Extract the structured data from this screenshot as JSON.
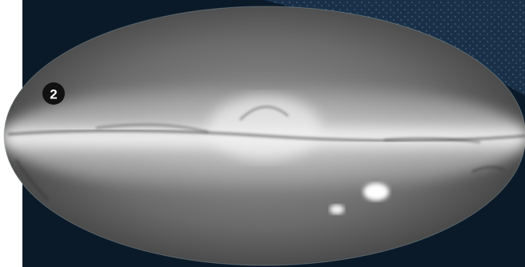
{
  "badge": "2"
}
